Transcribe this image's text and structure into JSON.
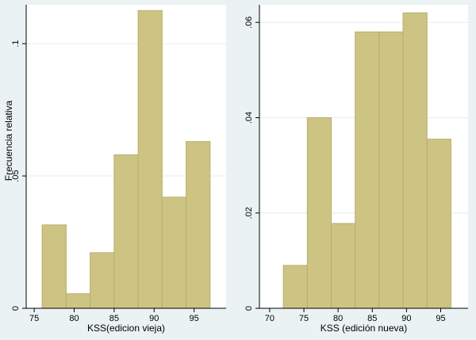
{
  "chart_data": [
    {
      "type": "bar",
      "subtype": "histogram",
      "xlabel": "KSS(edicion vieja)",
      "ylabel": "Frecuencia relativa",
      "xlim": [
        74,
        99
      ],
      "ylim": [
        0,
        0.1147
      ],
      "xticks": [
        75,
        80,
        85,
        90,
        95
      ],
      "yticks": [
        0,
        0.05,
        0.1
      ],
      "ytick_labels": [
        "0",
        ".05",
        ".1"
      ],
      "bins": [
        {
          "x0": 76.0,
          "x1": 79.0,
          "value": 0.0315
        },
        {
          "x0": 79.0,
          "x1": 82.0,
          "value": 0.0055
        },
        {
          "x0": 82.0,
          "x1": 85.0,
          "value": 0.021
        },
        {
          "x0": 85.0,
          "x1": 88.0,
          "value": 0.058
        },
        {
          "x0": 88.0,
          "x1": 91.0,
          "value": 0.1125
        },
        {
          "x0": 91.0,
          "x1": 94.0,
          "value": 0.042
        },
        {
          "x0": 94.0,
          "x1": 97.0,
          "value": 0.063
        }
      ]
    },
    {
      "type": "bar",
      "subtype": "histogram",
      "xlabel": "KSS (edición nueva)",
      "ylabel": "",
      "xlim": [
        68.5,
        99
      ],
      "ylim": [
        0,
        0.0637
      ],
      "xticks": [
        70,
        75,
        80,
        85,
        90,
        95
      ],
      "yticks": [
        0,
        0.02,
        0.04,
        0.06
      ],
      "ytick_labels": [
        "0",
        ".02",
        ".04",
        ".06"
      ],
      "bins": [
        {
          "x0": 72.0,
          "x1": 75.5,
          "value": 0.009
        },
        {
          "x0": 75.5,
          "x1": 79.0,
          "value": 0.04
        },
        {
          "x0": 79.0,
          "x1": 82.5,
          "value": 0.0178
        },
        {
          "x0": 82.5,
          "x1": 86.0,
          "value": 0.058
        },
        {
          "x0": 86.0,
          "x1": 89.5,
          "value": 0.058
        },
        {
          "x0": 89.5,
          "x1": 93.0,
          "value": 0.062
        },
        {
          "x0": 93.0,
          "x1": 96.5,
          "value": 0.0355
        }
      ]
    }
  ],
  "colors": {
    "background": "#eaf2f3",
    "plot_background": "#ffffff",
    "bar_fill": "#cdc484",
    "bar_edge": "#b7ae6c",
    "grid": "#e6ecec",
    "axis": "#000000"
  }
}
